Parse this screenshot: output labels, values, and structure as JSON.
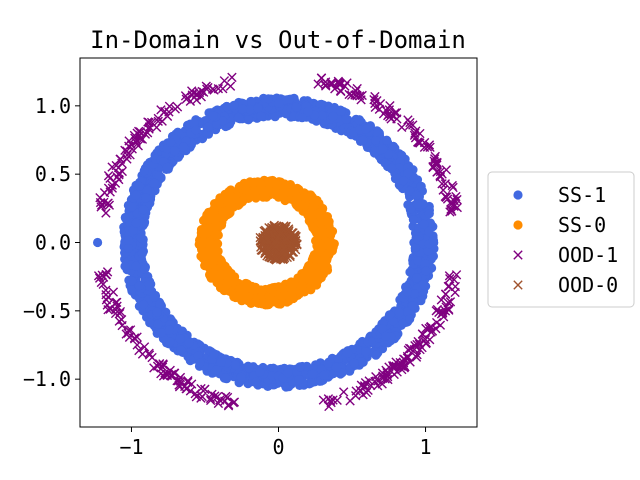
{
  "chart_data": {
    "type": "scatter",
    "title": "In-Domain vs Out-of-Domain",
    "xlabel": "",
    "ylabel": "",
    "xlim": [
      -1.35,
      1.35
    ],
    "ylim": [
      -1.35,
      1.35
    ],
    "x_ticks": [
      -1,
      0,
      1
    ],
    "x_tick_labels": [
      "−1",
      "0",
      "1"
    ],
    "y_ticks": [
      1.0,
      0.5,
      0.0,
      -0.5,
      -1.0
    ],
    "y_tick_labels": [
      "1.0",
      "0.5",
      "0.0",
      "−0.5",
      "−1.0"
    ],
    "grid": false,
    "legend_position": "center-right-outside",
    "series": [
      {
        "name": "SS-1",
        "marker": "circle",
        "color": "#4169e1",
        "shape": "annulus",
        "radius_range": [
          0.92,
          1.06
        ],
        "angle_ranges_deg": [
          [
            0,
            360
          ]
        ],
        "outlier": [
          [
            -1.23,
            0.0
          ]
        ],
        "n_points": 1800
      },
      {
        "name": "SS-0",
        "marker": "circle",
        "color": "#ff8c00",
        "shape": "annulus",
        "radius_range": [
          0.33,
          0.46
        ],
        "angle_ranges_deg": [
          [
            0,
            360
          ]
        ],
        "center_offset": [
          -0.08,
          0.0
        ],
        "n_points": 900
      },
      {
        "name": "OOD-1",
        "marker": "x",
        "color": "#800080",
        "shape": "arcs",
        "radius_range": [
          1.18,
          1.26
        ],
        "angle_ranges_deg": [
          [
            10,
            77
          ],
          [
            103,
            170
          ],
          [
            190,
            257
          ],
          [
            283,
            350
          ]
        ],
        "n_points": 400
      },
      {
        "name": "OOD-0",
        "marker": "x",
        "color": "#a0522d",
        "shape": "disk",
        "radius_range": [
          0.0,
          0.13
        ],
        "angle_ranges_deg": [
          [
            0,
            360
          ]
        ],
        "n_points": 250
      }
    ]
  }
}
